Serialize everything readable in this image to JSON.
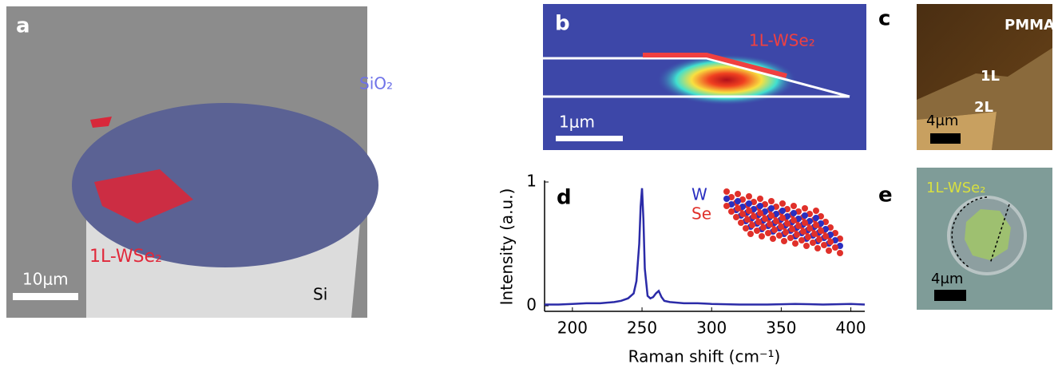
{
  "panels": {
    "a": {
      "label": "a",
      "sio2": "SiO₂",
      "flake": "1L-WSe₂",
      "scale": "10μm",
      "si": "Si"
    },
    "b": {
      "label": "b",
      "flake": "1L-WSe₂",
      "scale": "1μm"
    },
    "c": {
      "label": "c",
      "pmma": "PMMA",
      "one": "1L",
      "two": "2L",
      "scale": "4μm"
    },
    "e": {
      "label": "e",
      "flake": "1L-WSe₂",
      "scale": "4μm"
    }
  },
  "chart_data": {
    "type": "line",
    "label": "d",
    "x_label": "Raman shift (cm⁻¹)",
    "y_label": "Intensity (a.u.)",
    "inset_labels": [
      {
        "text": "W",
        "color": "#2a2fc0"
      },
      {
        "text": "Se",
        "color": "#e0302a"
      }
    ],
    "x": [
      180,
      190,
      200,
      210,
      220,
      230,
      235,
      240,
      244,
      246,
      248,
      249,
      250,
      251,
      252,
      254,
      256,
      258,
      260,
      262,
      264,
      266,
      270,
      280,
      290,
      300,
      320,
      340,
      360,
      380,
      400,
      410
    ],
    "series": [
      {
        "color": "#2b2ba8",
        "values": [
          0.01,
          0.01,
          0.015,
          0.02,
          0.02,
          0.03,
          0.04,
          0.06,
          0.1,
          0.2,
          0.5,
          0.8,
          0.95,
          0.7,
          0.3,
          0.08,
          0.06,
          0.07,
          0.1,
          0.12,
          0.07,
          0.04,
          0.03,
          0.02,
          0.02,
          0.015,
          0.01,
          0.01,
          0.015,
          0.01,
          0.015,
          0.01
        ]
      }
    ],
    "xlim": [
      180,
      410
    ],
    "xticks": [
      200,
      250,
      300,
      350,
      400
    ],
    "ylim": [
      -0.045,
      1
    ],
    "yticks": [
      0,
      1
    ]
  }
}
